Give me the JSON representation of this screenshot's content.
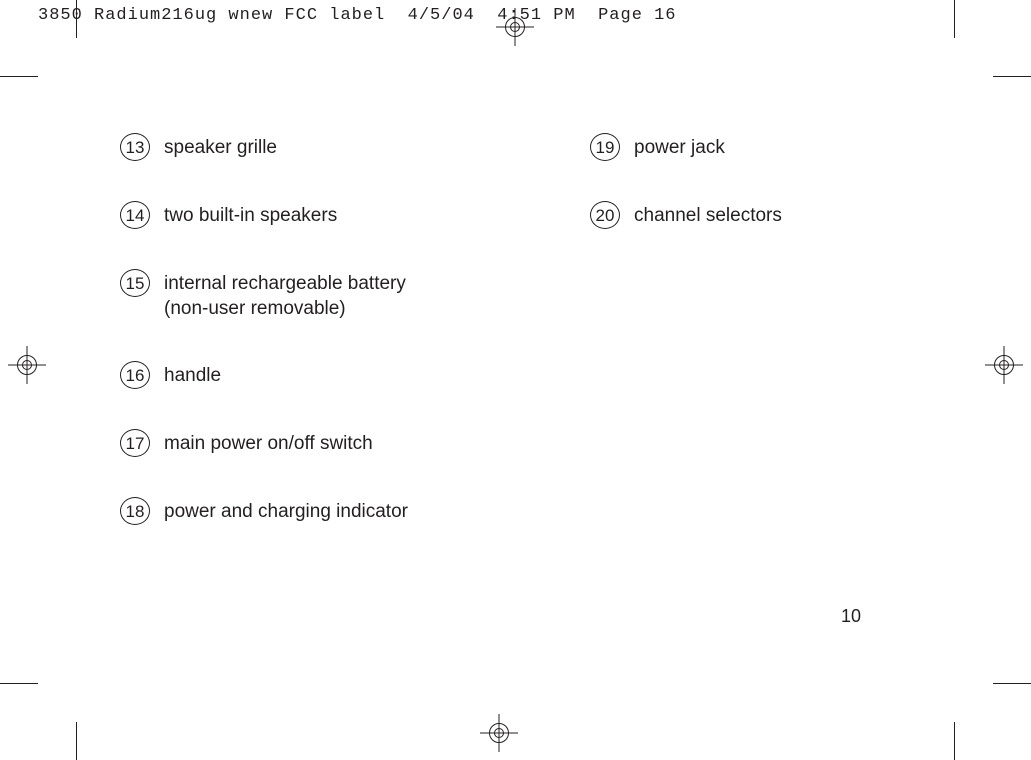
{
  "slug": "3850 Radium216ug wnew FCC label  4/5/04  4:51 PM  Page 16",
  "page_number": "10",
  "left_column": [
    {
      "num": "13",
      "label": "speaker grille"
    },
    {
      "num": "14",
      "label": "two built-in speakers"
    },
    {
      "num": "15",
      "label": "internal rechargeable battery\n(non-user removable)"
    },
    {
      "num": "16",
      "label": "handle"
    },
    {
      "num": "17",
      "label": "main power on/off switch"
    },
    {
      "num": "18",
      "label": "power and charging indicator"
    }
  ],
  "right_column": [
    {
      "num": "19",
      "label": "power jack"
    },
    {
      "num": "20",
      "label": "channel selectors"
    }
  ],
  "colors": {
    "text": "#231f20",
    "background": "#ffffff"
  }
}
